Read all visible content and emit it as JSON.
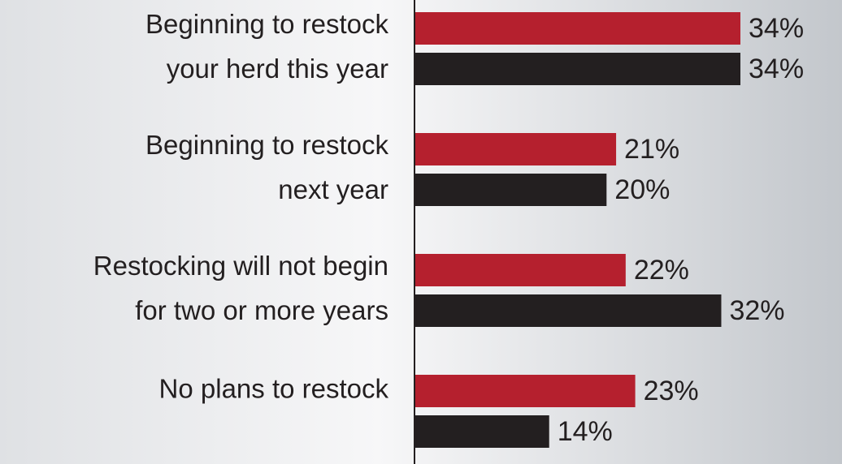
{
  "chart_data": {
    "type": "hbar",
    "categories": [
      [
        "Beginning to restock",
        "your herd this year"
      ],
      [
        "Beginning to restock",
        "next year"
      ],
      [
        "Restocking will not begin",
        "for two or more years"
      ],
      [
        "No plans to restock"
      ]
    ],
    "series": [
      {
        "color": "#b5202e",
        "values": [
          34,
          21,
          22,
          23
        ],
        "value_labels": [
          "34%",
          "21%",
          "22%",
          "23%"
        ]
      },
      {
        "color": "#231f20",
        "values": [
          34,
          20,
          32,
          14
        ],
        "value_labels": [
          "34%",
          "20%",
          "32%",
          "14%"
        ]
      }
    ]
  }
}
